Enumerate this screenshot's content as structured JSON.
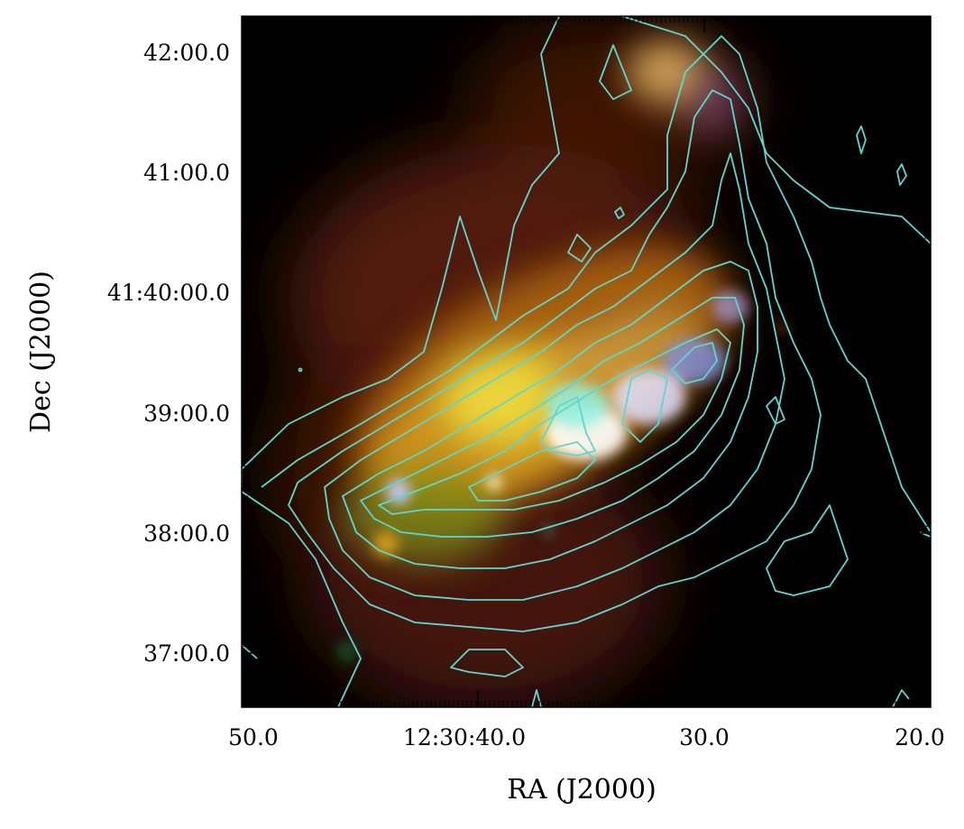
{
  "figure": {
    "xlabel": "RA (J2000)",
    "ylabel": "Dec (J2000)",
    "x_tick_labels": [
      "50.0",
      "12:30:40.0",
      "30.0",
      "20.0"
    ],
    "y_tick_labels": [
      "42:00.0",
      "41:00.0",
      "41:40:00.0",
      "39:00.0",
      "38:00.0",
      "37:00.0"
    ],
    "contour_color": "#5fd6d0",
    "background_color": "#000000"
  }
}
